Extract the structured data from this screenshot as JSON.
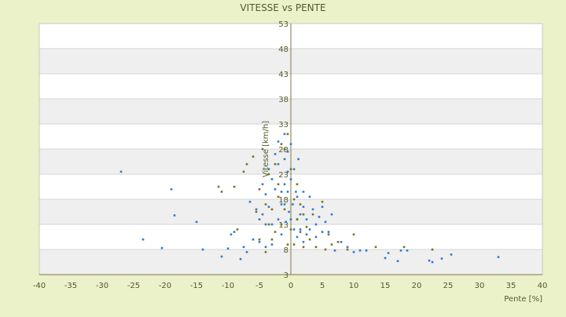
{
  "chart_data": {
    "type": "scatter",
    "title": "VITESSE vs PENTE",
    "xlabel": "Pente [%]",
    "ylabel": "Vitesse [km/h]",
    "xlim": [
      -40,
      40
    ],
    "ylim": [
      3,
      53
    ],
    "x_ticks": [
      -40,
      -35,
      -30,
      -25,
      -20,
      -15,
      -10,
      -5,
      0,
      5,
      10,
      15,
      20,
      25,
      30,
      35,
      40
    ],
    "y_ticks": [
      3,
      8,
      13,
      18,
      23,
      28,
      33,
      38,
      43,
      48,
      53
    ],
    "grid": true,
    "legend": "none",
    "series": [
      {
        "color": "#2b7bd6",
        "x": [
          -27,
          -23.5,
          -20.5,
          -19,
          -18.5,
          -15,
          -14,
          -11,
          -10,
          -9.5,
          -9,
          -8,
          -7.5,
          -7,
          -6.5,
          -6,
          -5.5,
          -5,
          -5,
          -4.5,
          -4.5,
          -4,
          -4,
          -4,
          -3.5,
          -3.5,
          -3,
          -3,
          -3,
          -2.5,
          -2.5,
          -2,
          -2,
          -2,
          -1.5,
          -1.5,
          -1.5,
          -1,
          -1,
          -1,
          -1,
          -0.8,
          -0.5,
          -0.5,
          -0.5,
          -0.3,
          0,
          0,
          0,
          0.3,
          0.5,
          0.5,
          0.8,
          1,
          1,
          1,
          1.2,
          1.5,
          1.5,
          2,
          2,
          2,
          2.5,
          2.5,
          3,
          3,
          3.5,
          4,
          4,
          4.5,
          5,
          5,
          5.5,
          6,
          6.5,
          7,
          8,
          9,
          10,
          11,
          12,
          15,
          15.5,
          17,
          17.5,
          18.5,
          22,
          22.5,
          24,
          25.5,
          33
        ],
        "y": [
          23.5,
          10,
          8.3,
          20,
          14.8,
          13.5,
          8,
          6.6,
          8.2,
          11,
          11.5,
          6.1,
          8.5,
          7.5,
          17.5,
          10,
          16,
          14,
          9.5,
          21,
          15,
          8.5,
          13,
          19,
          24,
          16.5,
          9,
          13,
          22,
          27,
          20,
          14,
          29.5,
          25,
          17,
          19.5,
          11,
          26,
          31,
          21,
          17,
          13.5,
          23.5,
          19.5,
          27.5,
          15.5,
          22,
          14,
          29,
          17,
          24,
          12,
          19.5,
          10.5,
          18.5,
          14,
          26,
          15,
          12,
          16.5,
          19.5,
          9.5,
          14,
          11,
          18.5,
          12,
          16,
          10.5,
          13,
          14.5,
          16.5,
          11.5,
          13.5,
          11.5,
          15,
          7.8,
          9.5,
          8.5,
          7.5,
          7.8,
          7.8,
          6.3,
          7.3,
          5.7,
          7.8,
          7.8,
          5.8,
          5.5,
          6.2,
          7,
          6.5
        ]
      },
      {
        "color": "#7a7220",
        "x": [
          -11.5,
          -11,
          -9,
          -8.5,
          -7.5,
          -7,
          -6,
          -5.5,
          -5,
          -5,
          -4.5,
          -4,
          -4,
          -3.5,
          -3.5,
          -3,
          -3,
          -2.5,
          -2.5,
          -2,
          -2,
          -1.5,
          -1.5,
          -1,
          -1,
          -0.5,
          -0.5,
          0,
          0,
          0.5,
          0.5,
          1,
          1,
          1.5,
          1.5,
          2,
          2,
          2.5,
          3,
          3.5,
          4,
          5,
          5.5,
          6,
          6.5,
          7.5,
          9,
          10,
          13.5,
          18,
          22.5
        ],
        "y": [
          20.5,
          19.5,
          20.5,
          12,
          23.5,
          25,
          26.5,
          15.5,
          20,
          10,
          28,
          17,
          7.5,
          13,
          23,
          16,
          10,
          25,
          11.5,
          18.5,
          21,
          13,
          29,
          28,
          16,
          31,
          9,
          24,
          12,
          18,
          9,
          14,
          21,
          11.5,
          17,
          8.5,
          15,
          12.5,
          10,
          15,
          8.5,
          17.5,
          8,
          11,
          9,
          9.5,
          8,
          11,
          8.5,
          8.5,
          8
        ]
      }
    ]
  }
}
